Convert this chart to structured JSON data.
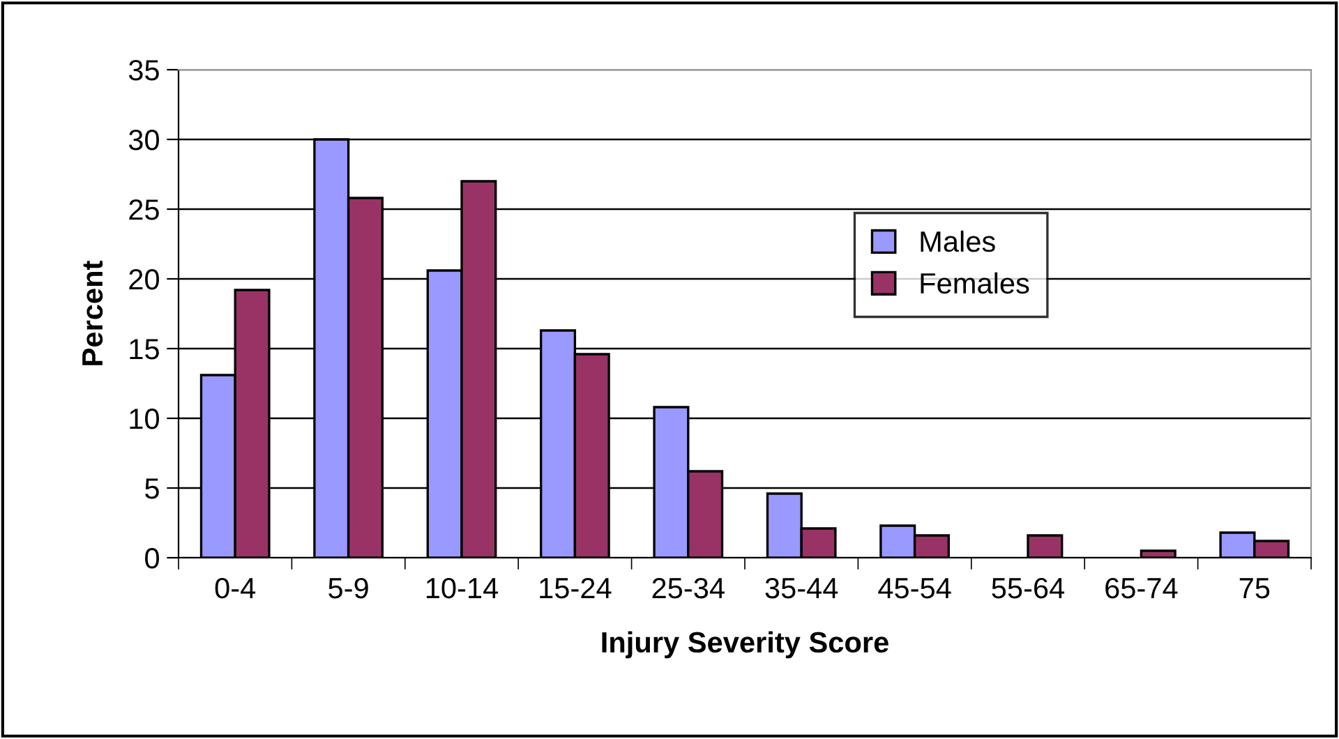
{
  "chart_data": {
    "type": "bar",
    "xlabel": "Injury Severity Score",
    "ylabel": "Percent",
    "categories": [
      "0-4",
      "5-9",
      "10-14",
      "15-24",
      "25-34",
      "35-44",
      "45-54",
      "55-64",
      "65-74",
      "75"
    ],
    "series": [
      {
        "name": "Males",
        "color": "#9999ff",
        "values": [
          13.1,
          30.0,
          20.6,
          16.3,
          10.8,
          4.6,
          2.3,
          null,
          null,
          1.8
        ]
      },
      {
        "name": "Females",
        "color": "#993366",
        "values": [
          19.2,
          25.8,
          27.0,
          14.6,
          6.2,
          2.1,
          1.6,
          1.6,
          0.5,
          1.2
        ]
      }
    ],
    "ylim": [
      0,
      35
    ],
    "yticks": [
      0,
      5,
      10,
      15,
      20,
      25,
      30,
      35
    ],
    "grid": "y",
    "legend": "right"
  }
}
